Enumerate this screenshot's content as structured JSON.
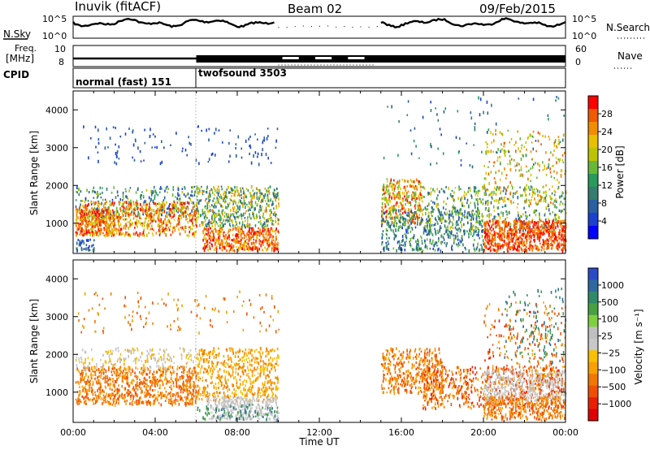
{
  "header": {
    "station": "Inuvik (fitACF)",
    "beam": "Beam 02",
    "date": "09/Feb/2015"
  },
  "status_labels": {
    "nsky": "N.Sky",
    "nsearch": "N.Search",
    "freq": "Freq.",
    "freq_unit": "[MHz]",
    "nave": "Nave",
    "cpid": "CPID",
    "nsky_ticks": [
      "10^5",
      "10^0"
    ],
    "nsearch_ticks": [
      "10^5",
      "10^0"
    ],
    "freq_ticks": [
      "10",
      "8"
    ],
    "nave_ticks": [
      "60",
      "0"
    ]
  },
  "cpid_segments": [
    {
      "label": "normal (fast) 151",
      "start_hour": 0,
      "end_hour": 6
    },
    {
      "label": "twofsound 3503",
      "start_hour": 6,
      "end_hour": 24
    }
  ],
  "chart_data": [
    {
      "type": "heatmap",
      "title": "",
      "ylabel": "Slant Range [km]",
      "xlim": [
        0,
        24
      ],
      "ylim": [
        200,
        4500
      ],
      "yticks": [
        "1000",
        "2000",
        "3000",
        "4000"
      ],
      "colorbar": {
        "label": "Power [dB]",
        "ticks": [
          "28",
          "24",
          "20",
          "16",
          "12",
          "8",
          "4"
        ],
        "colors": [
          "#ff0000",
          "#f05a00",
          "#f28c00",
          "#e8c000",
          "#bcc400",
          "#68b838",
          "#2a9a5c",
          "#357d6e",
          "#2a5fa0",
          "#1c40d0",
          "#0000ff"
        ]
      },
      "data_gap_hours": [
        10,
        15
      ],
      "regions": [
        {
          "x": [
            0.1,
            10
          ],
          "y": [
            800,
            1600
          ],
          "description_level": "strong"
        },
        {
          "x": [
            6,
            10
          ],
          "y": [
            300,
            900
          ],
          "description_level": "strong"
        },
        {
          "x": [
            15,
            24
          ],
          "y": [
            300,
            2000
          ],
          "description_level": "moderate"
        },
        {
          "x": [
            20,
            24
          ],
          "y": [
            300,
            1000
          ],
          "description_level": "strong"
        }
      ]
    },
    {
      "type": "heatmap",
      "title": "",
      "xlabel": "Time UT",
      "ylabel": "Slant Range [km]",
      "xlim": [
        0,
        24
      ],
      "ylim": [
        200,
        4500
      ],
      "xticks": [
        "00:00",
        "04:00",
        "08:00",
        "12:00",
        "16:00",
        "20:00",
        "00:00"
      ],
      "yticks": [
        "1000",
        "2000",
        "3000",
        "4000"
      ],
      "colorbar": {
        "label": "Velocity [m s⁻¹]",
        "ticks": [
          "1000",
          "500",
          "100",
          "25",
          "−25",
          "−100",
          "−500",
          "−1000"
        ],
        "colors": [
          "#2a4cc8",
          "#2e6aa0",
          "#2f8a6a",
          "#48a040",
          "#7fd040",
          "#bfbfbf",
          "#c8c8c8",
          "#f8c000",
          "#f8a000",
          "#f07800",
          "#f05000",
          "#e82000",
          "#e00000"
        ]
      },
      "data_gap_hours": [
        10,
        15
      ]
    }
  ]
}
